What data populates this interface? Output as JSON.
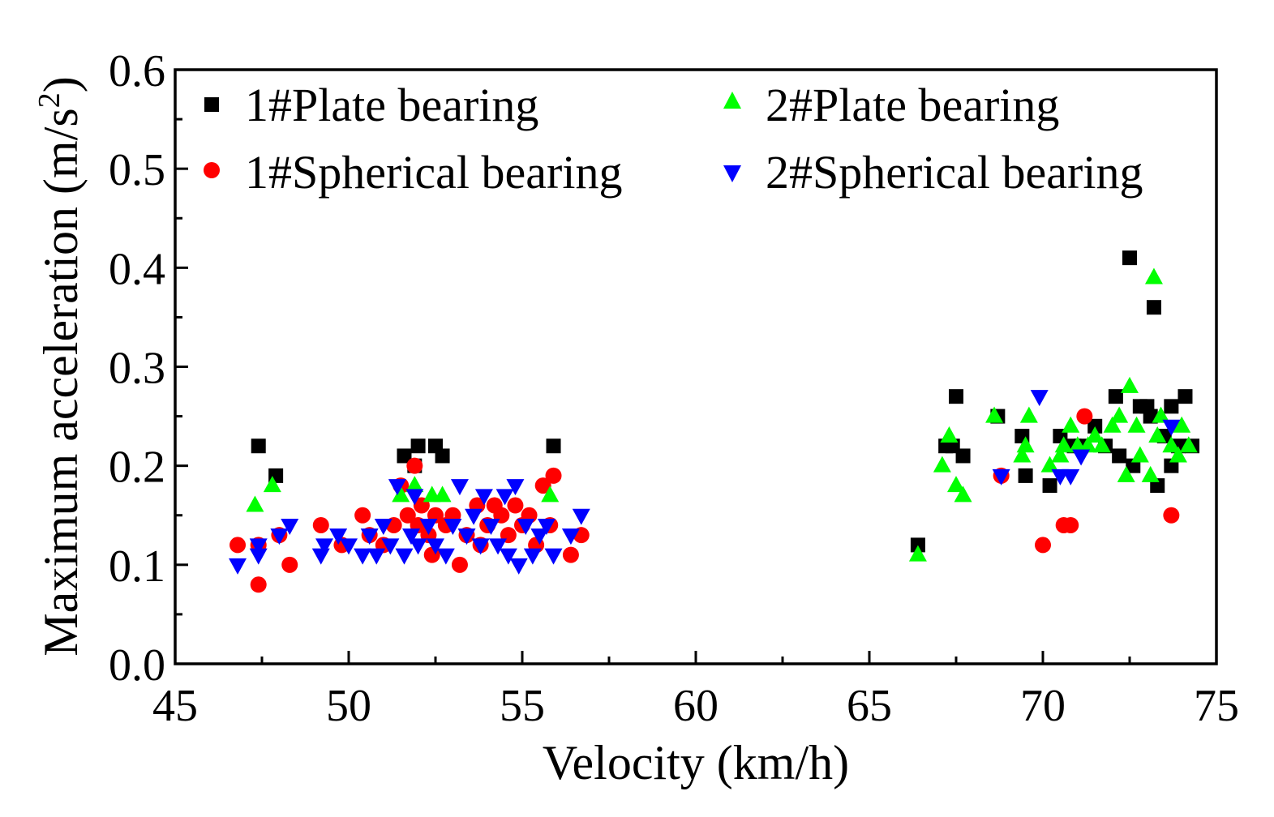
{
  "chart_data": {
    "type": "scatter",
    "title": "",
    "xlabel": "Velocity (km/h)",
    "ylabel_main": "Maximum acceleration (m/s",
    "ylabel_sup": "2",
    "ylabel_end": ")",
    "xlim": [
      45,
      75
    ],
    "ylim": [
      0.0,
      0.6
    ],
    "xticks": [
      45,
      50,
      55,
      60,
      65,
      70,
      75
    ],
    "xtick_labels": [
      "45",
      "50",
      "55",
      "60",
      "65",
      "70",
      "75"
    ],
    "yticks": [
      0.0,
      0.1,
      0.2,
      0.3,
      0.4,
      0.5,
      0.6
    ],
    "ytick_labels": [
      "0.0",
      "0.1",
      "0.2",
      "0.3",
      "0.4",
      "0.5",
      "0.6"
    ],
    "grid": false,
    "legend_position": "top",
    "series": [
      {
        "name": "1#Plate bearing",
        "marker": "square",
        "color": "#000000",
        "points": [
          [
            47.4,
            0.22
          ],
          [
            47.9,
            0.19
          ],
          [
            51.6,
            0.21
          ],
          [
            51.9,
            0.2
          ],
          [
            52.0,
            0.22
          ],
          [
            52.5,
            0.22
          ],
          [
            52.7,
            0.21
          ],
          [
            55.9,
            0.22
          ],
          [
            66.4,
            0.12
          ],
          [
            67.2,
            0.22
          ],
          [
            67.4,
            0.22
          ],
          [
            67.5,
            0.27
          ],
          [
            67.7,
            0.21
          ],
          [
            68.7,
            0.25
          ],
          [
            69.4,
            0.23
          ],
          [
            69.5,
            0.19
          ],
          [
            70.2,
            0.18
          ],
          [
            70.5,
            0.23
          ],
          [
            70.9,
            0.22
          ],
          [
            71.1,
            0.22
          ],
          [
            71.5,
            0.24
          ],
          [
            71.8,
            0.22
          ],
          [
            72.1,
            0.27
          ],
          [
            72.2,
            0.21
          ],
          [
            72.5,
            0.41
          ],
          [
            72.6,
            0.2
          ],
          [
            72.8,
            0.26
          ],
          [
            73.0,
            0.26
          ],
          [
            73.1,
            0.25
          ],
          [
            73.2,
            0.36
          ],
          [
            73.3,
            0.18
          ],
          [
            73.5,
            0.23
          ],
          [
            73.7,
            0.2
          ],
          [
            73.7,
            0.26
          ],
          [
            73.9,
            0.22
          ],
          [
            74.1,
            0.27
          ],
          [
            74.3,
            0.22
          ]
        ]
      },
      {
        "name": "1#Spherical bearing",
        "marker": "circle",
        "color": "#ff0000",
        "points": [
          [
            46.8,
            0.12
          ],
          [
            47.4,
            0.08
          ],
          [
            47.4,
            0.12
          ],
          [
            48.0,
            0.13
          ],
          [
            48.3,
            0.1
          ],
          [
            49.2,
            0.14
          ],
          [
            49.8,
            0.12
          ],
          [
            50.4,
            0.15
          ],
          [
            50.6,
            0.13
          ],
          [
            51.0,
            0.12
          ],
          [
            51.3,
            0.14
          ],
          [
            51.5,
            0.18
          ],
          [
            51.7,
            0.15
          ],
          [
            51.9,
            0.2
          ],
          [
            52.0,
            0.14
          ],
          [
            52.1,
            0.16
          ],
          [
            52.3,
            0.13
          ],
          [
            52.4,
            0.11
          ],
          [
            52.5,
            0.15
          ],
          [
            52.8,
            0.14
          ],
          [
            53.0,
            0.15
          ],
          [
            53.2,
            0.1
          ],
          [
            53.4,
            0.13
          ],
          [
            53.7,
            0.16
          ],
          [
            53.8,
            0.12
          ],
          [
            54.0,
            0.14
          ],
          [
            54.2,
            0.16
          ],
          [
            54.4,
            0.15
          ],
          [
            54.6,
            0.13
          ],
          [
            54.8,
            0.16
          ],
          [
            55.0,
            0.14
          ],
          [
            55.2,
            0.15
          ],
          [
            55.4,
            0.12
          ],
          [
            55.6,
            0.18
          ],
          [
            55.8,
            0.14
          ],
          [
            55.9,
            0.19
          ],
          [
            56.4,
            0.11
          ],
          [
            56.7,
            0.13
          ],
          [
            68.8,
            0.19
          ],
          [
            70.0,
            0.12
          ],
          [
            70.6,
            0.14
          ],
          [
            70.8,
            0.14
          ],
          [
            71.2,
            0.25
          ],
          [
            73.7,
            0.15
          ]
        ]
      },
      {
        "name": "2#Plate bearing",
        "marker": "triangle-up",
        "color": "#00ff00",
        "points": [
          [
            47.3,
            0.16
          ],
          [
            47.8,
            0.18
          ],
          [
            51.5,
            0.17
          ],
          [
            51.9,
            0.18
          ],
          [
            52.4,
            0.17
          ],
          [
            52.7,
            0.17
          ],
          [
            55.8,
            0.17
          ],
          [
            66.4,
            0.11
          ],
          [
            67.1,
            0.2
          ],
          [
            67.3,
            0.23
          ],
          [
            67.5,
            0.18
          ],
          [
            67.7,
            0.17
          ],
          [
            68.6,
            0.25
          ],
          [
            69.4,
            0.21
          ],
          [
            69.5,
            0.22
          ],
          [
            69.6,
            0.25
          ],
          [
            70.2,
            0.2
          ],
          [
            70.5,
            0.21
          ],
          [
            70.6,
            0.22
          ],
          [
            70.8,
            0.24
          ],
          [
            71.0,
            0.22
          ],
          [
            71.3,
            0.22
          ],
          [
            71.5,
            0.23
          ],
          [
            71.7,
            0.22
          ],
          [
            72.0,
            0.24
          ],
          [
            72.2,
            0.25
          ],
          [
            72.4,
            0.19
          ],
          [
            72.5,
            0.28
          ],
          [
            72.7,
            0.24
          ],
          [
            72.8,
            0.21
          ],
          [
            73.1,
            0.19
          ],
          [
            73.2,
            0.39
          ],
          [
            73.3,
            0.23
          ],
          [
            73.4,
            0.25
          ],
          [
            73.7,
            0.22
          ],
          [
            73.9,
            0.21
          ],
          [
            74.0,
            0.24
          ],
          [
            74.2,
            0.22
          ]
        ]
      },
      {
        "name": "2#Spherical bearing",
        "marker": "triangle-down",
        "color": "#0000ff",
        "points": [
          [
            46.8,
            0.1
          ],
          [
            47.4,
            0.11
          ],
          [
            47.4,
            0.12
          ],
          [
            48.0,
            0.13
          ],
          [
            48.3,
            0.14
          ],
          [
            49.2,
            0.11
          ],
          [
            49.3,
            0.12
          ],
          [
            49.7,
            0.13
          ],
          [
            50.0,
            0.12
          ],
          [
            50.4,
            0.11
          ],
          [
            50.6,
            0.13
          ],
          [
            50.8,
            0.11
          ],
          [
            51.0,
            0.14
          ],
          [
            51.2,
            0.12
          ],
          [
            51.4,
            0.18
          ],
          [
            51.6,
            0.11
          ],
          [
            51.8,
            0.13
          ],
          [
            51.9,
            0.17
          ],
          [
            52.0,
            0.12
          ],
          [
            52.3,
            0.14
          ],
          [
            52.5,
            0.12
          ],
          [
            52.8,
            0.11
          ],
          [
            53.0,
            0.14
          ],
          [
            53.2,
            0.18
          ],
          [
            53.4,
            0.13
          ],
          [
            53.6,
            0.15
          ],
          [
            53.8,
            0.12
          ],
          [
            53.9,
            0.17
          ],
          [
            54.1,
            0.14
          ],
          [
            54.3,
            0.12
          ],
          [
            54.5,
            0.17
          ],
          [
            54.6,
            0.11
          ],
          [
            54.8,
            0.18
          ],
          [
            54.9,
            0.1
          ],
          [
            55.1,
            0.14
          ],
          [
            55.3,
            0.11
          ],
          [
            55.5,
            0.13
          ],
          [
            55.7,
            0.14
          ],
          [
            55.9,
            0.11
          ],
          [
            56.4,
            0.13
          ],
          [
            56.7,
            0.15
          ],
          [
            68.8,
            0.19
          ],
          [
            69.9,
            0.27
          ],
          [
            70.5,
            0.19
          ],
          [
            70.8,
            0.19
          ],
          [
            71.1,
            0.21
          ],
          [
            73.7,
            0.24
          ]
        ]
      }
    ]
  }
}
